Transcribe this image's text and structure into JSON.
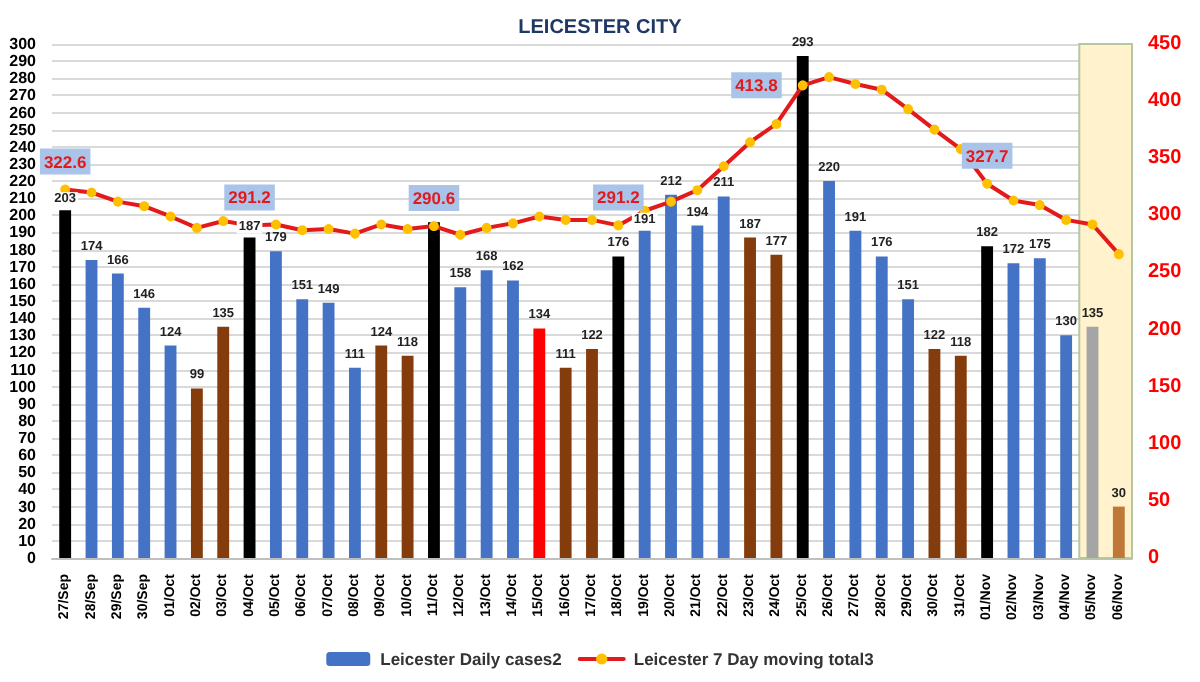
{
  "chart_data": {
    "type": "bar",
    "title": "LEICESTER CITY",
    "categories": [
      "27/Sep",
      "28/Sep",
      "29/Sep",
      "30/Sep",
      "01/Oct",
      "02/Oct",
      "03/Oct",
      "04/Oct",
      "05/Oct",
      "06/Oct",
      "07/Oct",
      "08/Oct",
      "09/Oct",
      "10/Oct",
      "11/Oct",
      "12/Oct",
      "13/Oct",
      "14/Oct",
      "15/Oct",
      "16/Oct",
      "17/Oct",
      "18/Oct",
      "19/Oct",
      "20/Oct",
      "21/Oct",
      "22/Oct",
      "23/Oct",
      "24/Oct",
      "25/Oct",
      "26/Oct",
      "27/Oct",
      "28/Oct",
      "29/Oct",
      "30/Oct",
      "31/Oct",
      "01/Nov",
      "02/Nov",
      "03/Nov",
      "04/Nov",
      "05/Nov",
      "06/Nov"
    ],
    "series": [
      {
        "name": "Leicester Daily cases2",
        "color": "#4472c4",
        "values": [
          203,
          174,
          166,
          146,
          124,
          99,
          135,
          187,
          179,
          151,
          149,
          111,
          124,
          118,
          196,
          158,
          168,
          162,
          134,
          111,
          122,
          176,
          191,
          212,
          194,
          211,
          187,
          177,
          293,
          220,
          191,
          176,
          151,
          122,
          118,
          182,
          172,
          175,
          130,
          135,
          30
        ],
        "colors": [
          "#000000",
          "#4472c4",
          "#4472c4",
          "#4472c4",
          "#4472c4",
          "#843c0c",
          "#843c0c",
          "#000000",
          "#4472c4",
          "#4472c4",
          "#4472c4",
          "#4472c4",
          "#843c0c",
          "#843c0c",
          "#000000",
          "#4472c4",
          "#4472c4",
          "#4472c4",
          "#ff0000",
          "#843c0c",
          "#843c0c",
          "#000000",
          "#4472c4",
          "#4472c4",
          "#4472c4",
          "#4472c4",
          "#843c0c",
          "#843c0c",
          "#000000",
          "#4472c4",
          "#4472c4",
          "#4472c4",
          "#4472c4",
          "#843c0c",
          "#843c0c",
          "#000000",
          "#4472c4",
          "#4472c4",
          "#4472c4",
          "#a5a5a5",
          "#c07838"
        ],
        "value_labels": [
          "203",
          "174",
          "166",
          "146",
          "124",
          "99",
          "135",
          "187",
          "179",
          "151",
          "149",
          "111",
          "124",
          "118",
          null,
          "158",
          "168",
          "162",
          "134",
          "111",
          "122",
          "176",
          "191",
          "212",
          "194",
          "211",
          "187",
          "177",
          "293",
          "220",
          "191",
          "176",
          "151",
          "122",
          "118",
          "182",
          "172",
          "175",
          "130",
          "135",
          "30"
        ]
      },
      {
        "name": "Leicester 7 Day moving total3",
        "type": "line",
        "axis": "y2",
        "color": "#e31a1c",
        "values": [
          322.6,
          320,
          312,
          308,
          299,
          289,
          295,
          291.2,
          292,
          287,
          288,
          284,
          292,
          288,
          290.6,
          283,
          289,
          293,
          299,
          296,
          296,
          291.2,
          304,
          312,
          322,
          343,
          364,
          380,
          413.8,
          421,
          415,
          410,
          393,
          375,
          358,
          327.7,
          313,
          309,
          296,
          292,
          266
        ],
        "value_labels": [
          "322.6",
          null,
          null,
          null,
          null,
          null,
          null,
          "291.2",
          null,
          null,
          null,
          null,
          null,
          null,
          "290.6",
          null,
          null,
          null,
          null,
          null,
          null,
          "291.2",
          null,
          null,
          null,
          null,
          null,
          null,
          "413.8",
          null,
          null,
          null,
          null,
          null,
          null,
          "327.7",
          null,
          null,
          null,
          null,
          null
        ]
      }
    ],
    "ylim": [
      0,
      300
    ],
    "yticks": [
      0,
      10,
      20,
      30,
      40,
      50,
      60,
      70,
      80,
      90,
      100,
      110,
      120,
      130,
      140,
      150,
      160,
      170,
      180,
      190,
      200,
      210,
      220,
      230,
      240,
      250,
      260,
      270,
      280,
      290,
      300
    ],
    "y2lim": [
      0,
      450
    ],
    "y2ticks": [
      0,
      50,
      100,
      150,
      200,
      250,
      300,
      350,
      400,
      450
    ],
    "bands": [
      {
        "axis": "x",
        "from": "05/Nov",
        "to": "06/Nov",
        "color": "#fff2cc"
      }
    ],
    "grid": "y",
    "legend": "bottom",
    "marker": "circle",
    "line_style": "solid"
  }
}
